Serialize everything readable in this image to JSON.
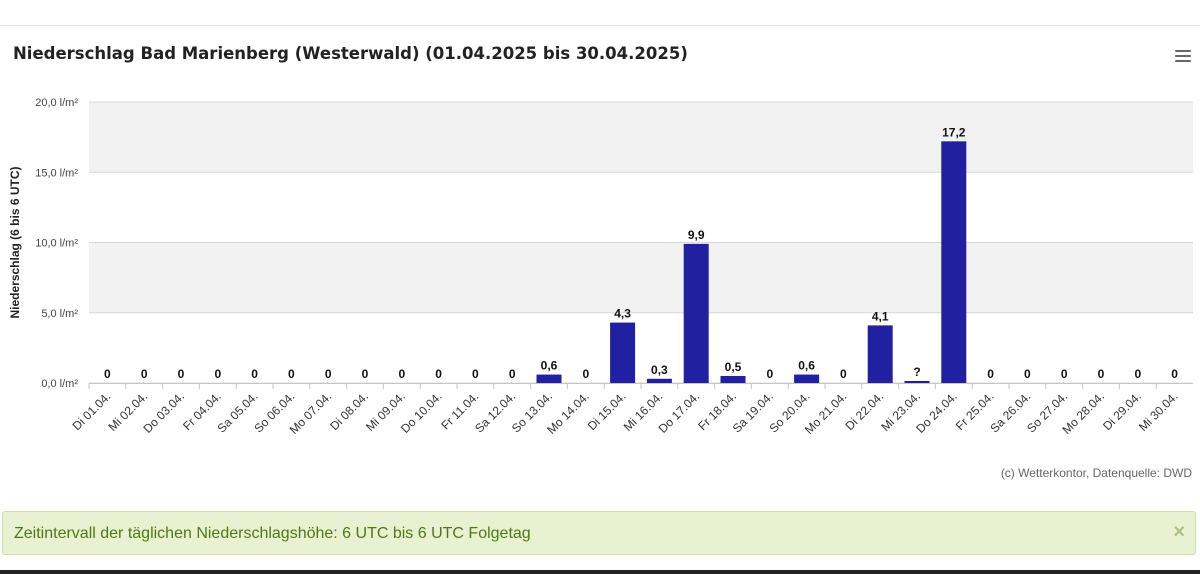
{
  "chart_data": {
    "type": "bar",
    "title": "Niederschlag Bad Marienberg (Westerwald) (01.04.2025 bis 30.04.2025)",
    "ylabel": "Niederschlag (6 bis 6 UTC)",
    "xlabel": "",
    "ylim": [
      0,
      20
    ],
    "yticks": [
      "0,0 l/m²",
      "5,0 l/m²",
      "10,0 l/m²",
      "15,0 l/m²",
      "20,0 l/m²"
    ],
    "grid": true,
    "bar_color": "#2020a0",
    "categories": [
      "Di 01.04.",
      "Mi 02.04.",
      "Do 03.04.",
      "Fr 04.04.",
      "Sa 05.04.",
      "So 06.04.",
      "Mo 07.04.",
      "Di 08.04.",
      "Mi 09.04.",
      "Do 10.04.",
      "Fr 11.04.",
      "Sa 12.04.",
      "So 13.04.",
      "Mo 14.04.",
      "Di 15.04.",
      "Mi 16.04.",
      "Do 17.04.",
      "Fr 18.04.",
      "Sa 19.04.",
      "So 20.04.",
      "Mo 21.04.",
      "Di 22.04.",
      "Mi 23.04.",
      "Do 24.04.",
      "Fr 25.04.",
      "Sa 26.04.",
      "So 27.04.",
      "Mo 28.04.",
      "Di 29.04.",
      "Mi 30.04."
    ],
    "values": [
      0,
      0,
      0,
      0,
      0,
      0,
      0,
      0,
      0,
      0,
      0,
      0,
      0.6,
      0,
      4.3,
      0.3,
      9.9,
      0.5,
      0,
      0.6,
      0,
      4.1,
      null,
      17.2,
      0,
      0,
      0,
      0,
      0,
      0
    ],
    "data_labels": [
      "0",
      "0",
      "0",
      "0",
      "0",
      "0",
      "0",
      "0",
      "0",
      "0",
      "0",
      "0",
      "0,6",
      "0",
      "4,3",
      "0,3",
      "9,9",
      "0,5",
      "0",
      "0,6",
      "0",
      "4,1",
      "?",
      "17,2",
      "0",
      "0",
      "0",
      "0",
      "0",
      "0"
    ]
  },
  "credit": "(c) Wetterkontor, Datenquelle: DWD",
  "alert": {
    "text": "Zeitintervall der täglichen Niederschlagshöhe: 6 UTC bis 6 UTC Folgetag",
    "close": "×"
  },
  "icons": {
    "menu": "hamburger-menu-icon"
  }
}
